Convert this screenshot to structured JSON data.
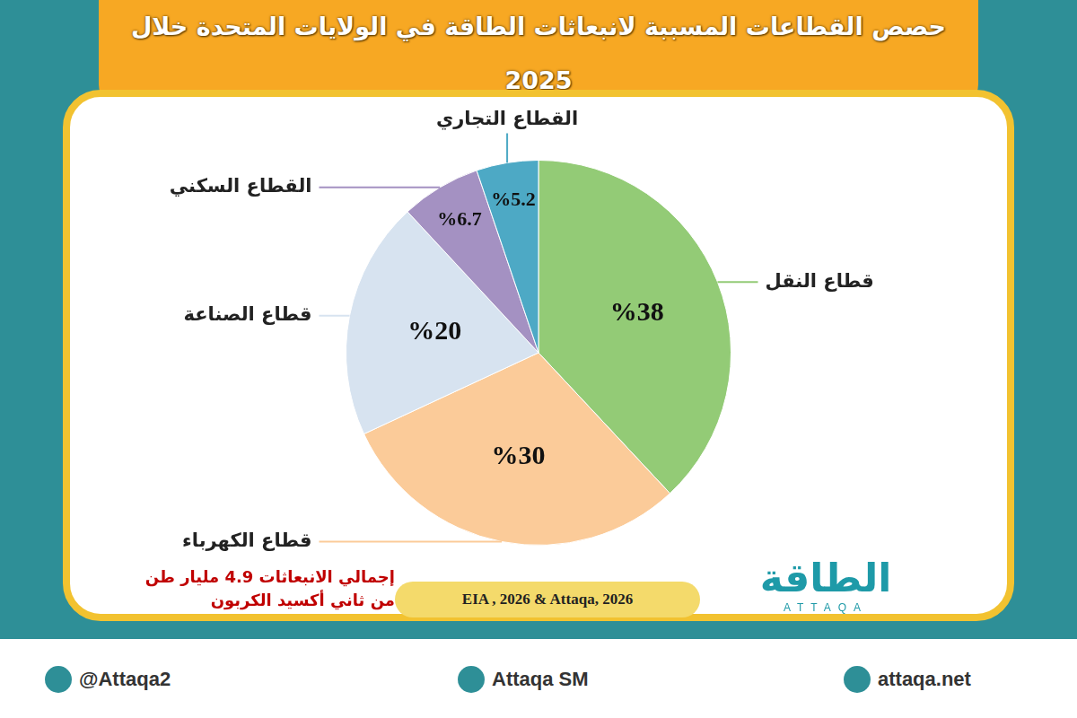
{
  "chart_data": {
    "type": "pie",
    "title": "حصص القطاعات المسببة لانبعاثات الطاقة في الولايات المتحدة خلال 2025",
    "categories": [
      "قطاع النقل",
      "قطاع الكهرباء",
      "قطاع الصناعة",
      "القطاع السكني",
      "القطاع التجاري"
    ],
    "values": [
      38,
      30,
      20,
      6.7,
      5.2
    ],
    "value_labels": [
      "%38",
      "%30",
      "%20",
      "%6.7",
      "%5.2"
    ],
    "colors": [
      "#93CB76",
      "#FBCB99",
      "#D7E3F0",
      "#A491C2",
      "#4DA9C5"
    ],
    "data_labels": true,
    "annotations": [
      "إجمالي الانبعاثات 4.9 مليار طن",
      "من ثاني أكسيد الكربون"
    ],
    "source": "EIA , 2026 & Attaqa, 2026"
  },
  "branding": {
    "logo": "الطاقة",
    "logo_subtext": "ATTAQA",
    "footer": [
      "@Attaqa2",
      "Attaqa SM",
      "attaqa.net"
    ]
  }
}
